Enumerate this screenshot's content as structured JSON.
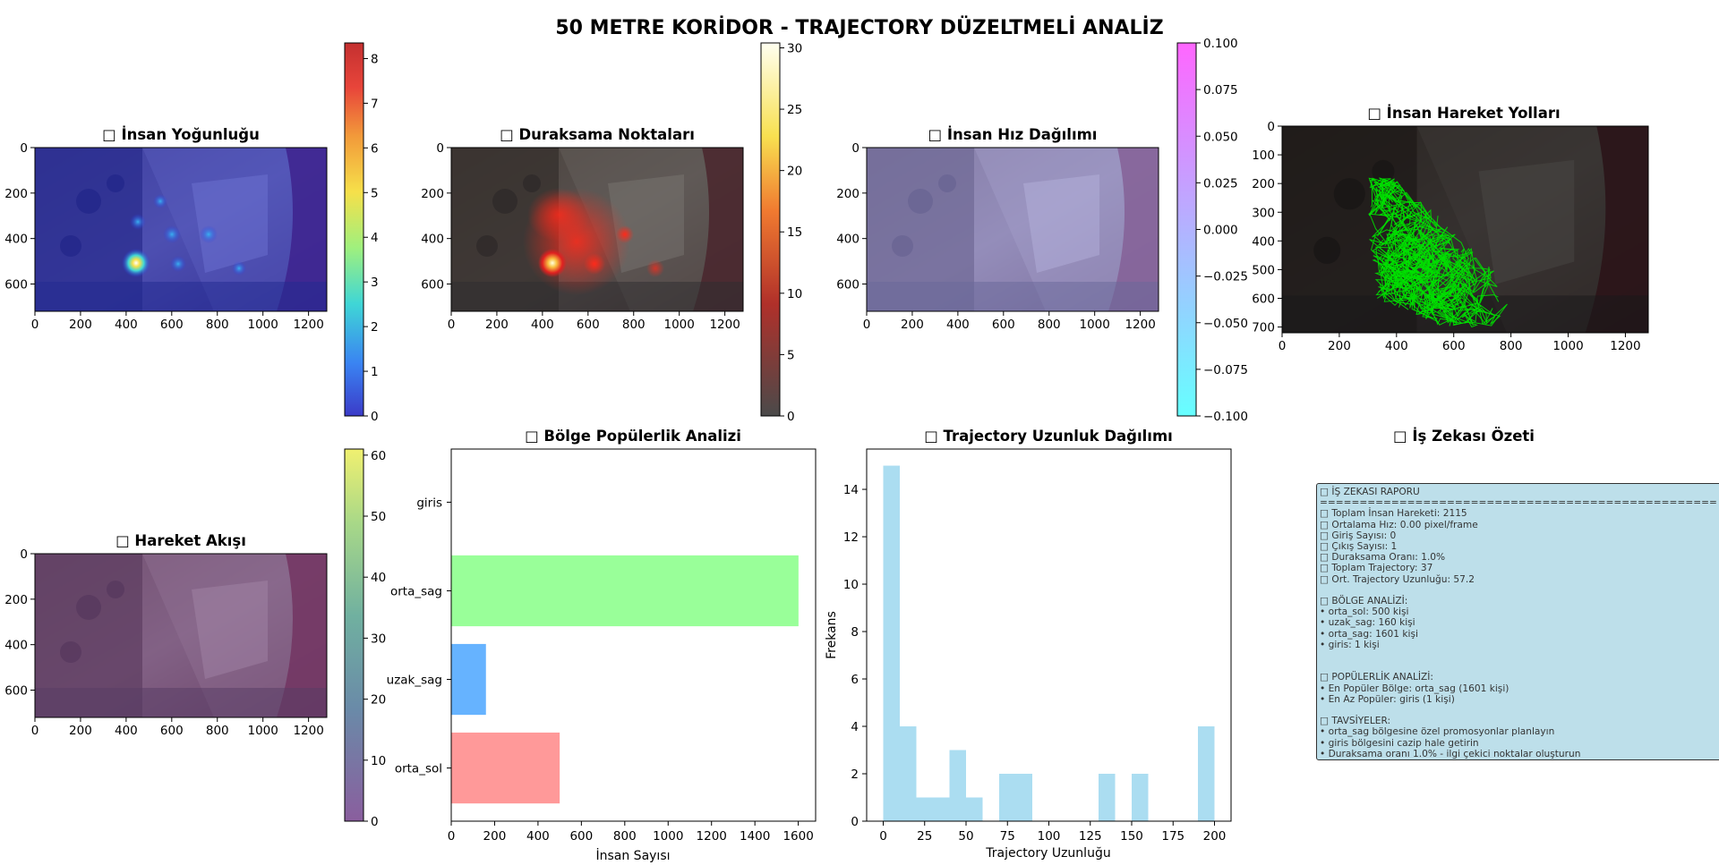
{
  "figure": {
    "title": "50 METRE KORİDOR - TRAJECTORY DÜZELTMELİ ANALİZ"
  },
  "panels": {
    "density": {
      "title": "□ İnsan Yoğunluğu",
      "cbar_ticks": [
        "0",
        "1",
        "2",
        "3",
        "4",
        "5",
        "6",
        "7",
        "8"
      ]
    },
    "pause": {
      "title": "□  Duraksama Noktaları",
      "cbar_ticks": [
        "0",
        "5",
        "10",
        "15",
        "20",
        "25",
        "30"
      ]
    },
    "speed": {
      "title": "□ İnsan Hız Dağılımı",
      "cbar_ticks": [
        "0.100",
        "0.075",
        "0.050",
        "0.025",
        "0.000",
        "−0.025",
        "−0.050",
        "−0.075",
        "−0.100"
      ]
    },
    "paths": {
      "title": "□ İnsan Hareket Yolları"
    },
    "flow": {
      "title": "□ Hareket Akışı",
      "cbar_ticks": [
        "0",
        "10",
        "20",
        "30",
        "40",
        "50",
        "60"
      ]
    },
    "region": {
      "title": "□ Bölge Popülerlik Analizi",
      "xlabel": "İnsan Sayısı"
    },
    "traj": {
      "title": "□ Trajectory Uzunluk Dağılımı",
      "xlabel": "Trajectory Uzunluğu",
      "ylabel": "Frekans"
    },
    "summary": {
      "title": "□ İş Zekası Özeti"
    }
  },
  "image_axis": {
    "x_ticks": [
      "0",
      "200",
      "400",
      "600",
      "800",
      "1000",
      "1200"
    ],
    "y_ticks": [
      "0",
      "200",
      "400",
      "600"
    ],
    "paths_y_ticks": [
      "0",
      "100",
      "200",
      "300",
      "400",
      "500",
      "600",
      "700"
    ]
  },
  "colors": {
    "density_cmap": [
      "#3b3bc8",
      "#3a83f2",
      "#3fd6d6",
      "#9ff07e",
      "#f6e04a",
      "#f29a3a",
      "#e8453a",
      "#c43030"
    ],
    "pause_cmap": [
      "#4a4a4a",
      "#8a2e2e",
      "#d03a2a",
      "#f07a30",
      "#f8c040",
      "#fafa70",
      "#ffffe8"
    ],
    "speed_cmap": [
      "#ff66ff",
      "#66ffff"
    ],
    "flow_cmap": [
      "#8a5e9e",
      "#6a8aa8",
      "#70b0a0",
      "#9cd08a",
      "#f0f070"
    ],
    "path_green": "#00e000"
  },
  "chart_data": [
    {
      "type": "bar",
      "orientation": "horizontal",
      "title": "□ Bölge Popülerlik Analizi",
      "categories": [
        "orta_sol",
        "uzak_sag",
        "orta_sag",
        "giris"
      ],
      "values": [
        500,
        160,
        1601,
        1
      ],
      "colors": [
        "#ff9999",
        "#66b3ff",
        "#99ff99",
        "#ffcc99"
      ],
      "xlabel": "İnsan Sayısı",
      "xlim": [
        0,
        1680
      ],
      "x_ticks": [
        0,
        200,
        400,
        600,
        800,
        1000,
        1200,
        1400,
        1600
      ]
    },
    {
      "type": "bar",
      "subtype": "histogram",
      "title": "□ Trajectory Uzunluk Dağılımı",
      "bin_width": 10,
      "bin_starts": [
        0,
        10,
        20,
        30,
        40,
        50,
        60,
        70,
        80,
        90,
        100,
        110,
        120,
        130,
        140,
        150,
        160,
        170,
        180,
        190
      ],
      "counts": [
        15,
        4,
        1,
        1,
        3,
        1,
        0,
        2,
        2,
        0,
        0,
        0,
        0,
        2,
        0,
        2,
        0,
        0,
        0,
        4
      ],
      "color": "#87ceeb",
      "xlabel": "Trajectory Uzunluğu",
      "ylabel": "Frekans",
      "xlim": [
        -10,
        210
      ],
      "ylim": [
        0,
        15.7
      ],
      "x_ticks": [
        0,
        25,
        50,
        75,
        100,
        125,
        150,
        175,
        200
      ],
      "y_ticks": [
        0,
        2,
        4,
        6,
        8,
        10,
        12,
        14
      ]
    }
  ],
  "report": {
    "lines": [
      "□ İŞ ZEKASI RAPORU",
      "==================================================",
      "□ Toplam İnsan Hareketi: 2115",
      "□ Ortalama Hız: 0.00 pixel/frame",
      "□ Giriş Sayısı: 0",
      "□ Çıkış Sayısı: 1",
      "□  Duraksama Oranı: 1.0%",
      "□ Toplam Trajectory: 37",
      "□ Ort. Trajectory Uzunluğu: 57.2",
      "",
      "□ BÖLGE ANALİZİ:",
      "• orta_sol: 500 kişi",
      "• uzak_sag: 160 kişi",
      "• orta_sag: 1601 kişi",
      "• giris: 1 kişi",
      "",
      "",
      "□ POPÜLERLİK ANALİZİ:",
      "• En Popüler Bölge: orta_sag (1601 kişi)",
      "• En Az Popüler: giris (1 kişi)",
      "",
      "□ TAVSİYELER:",
      "• orta_sag bölgesine özel promosyonlar planlayın",
      "• giris bölgesini cazip hale getirin",
      "• Duraksama oranı 1.0% - ilgi çekici noktalar oluşturun"
    ]
  }
}
